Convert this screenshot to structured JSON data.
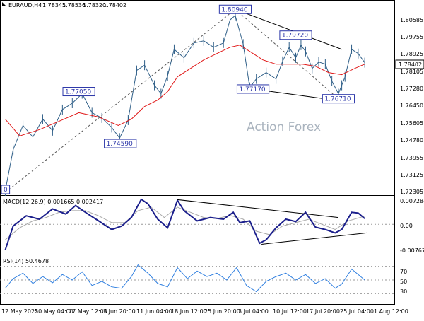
{
  "chart_data": {
    "type": "line",
    "symbol": "EURAUD,H4",
    "ohlc_header": [
      "1.78345",
      "1.78536",
      "1.78320",
      "1.78402"
    ],
    "watermark": "Action Forex",
    "last_price": "1.78402",
    "price_axis": {
      "ylim": [
        1.7215,
        1.8135
      ],
      "ticks": [
        "1.80585",
        "1.79755",
        "1.78925",
        "1.78105",
        "1.77280",
        "1.76450",
        "1.75605",
        "1.74780",
        "1.73955",
        "1.73125",
        "1.72305"
      ]
    },
    "x_axis": {
      "xlim": [
        0,
        600
      ],
      "ticks": [
        "12 May 2025",
        "20 May 04:00",
        "27 May 12:00",
        "3 Jun 20:00",
        "11 Jun 04:00",
        "18 Jun 12:00",
        "25 Jun 20:00",
        "3 Jul 04:00",
        "10 Jul 12:00",
        "17 Jul 20:00",
        "25 Jul 04:00",
        "1 Aug 12:00"
      ]
    },
    "price_series": {
      "name": "EURAUD",
      "x": [
        8,
        20,
        35,
        50,
        65,
        80,
        95,
        110,
        125,
        140,
        155,
        170,
        182,
        195,
        208,
        220,
        235,
        245,
        255,
        265,
        280,
        295,
        310,
        325,
        340,
        350,
        358,
        370,
        380,
        390,
        405,
        420,
        430,
        440,
        450,
        458,
        465,
        475,
        485,
        495,
        505,
        515,
        520,
        525,
        535,
        545,
        555
      ],
      "y": [
        1.7235,
        1.743,
        1.7545,
        1.749,
        1.7575,
        1.752,
        1.762,
        1.765,
        1.7695,
        1.7605,
        1.758,
        1.7535,
        1.7485,
        1.757,
        1.7805,
        1.783,
        1.7735,
        1.7695,
        1.778,
        1.7905,
        1.7865,
        1.7935,
        1.7945,
        1.7915,
        1.7935,
        1.8044,
        1.8065,
        1.793,
        1.7725,
        1.7765,
        1.7795,
        1.7765,
        1.7848,
        1.7915,
        1.7865,
        1.7925,
        1.7895,
        1.7815,
        1.7845,
        1.7835,
        1.7755,
        1.7695,
        1.7735,
        1.7775,
        1.7905,
        1.7885,
        1.7842
      ]
    },
    "ma_series": {
      "x": [
        8,
        30,
        60,
        90,
        120,
        150,
        180,
        200,
        220,
        240,
        255,
        270,
        290,
        310,
        330,
        350,
        365,
        380,
        400,
        420,
        440,
        460,
        480,
        500,
        520,
        540,
        555
      ],
      "y": [
        1.7575,
        1.7495,
        1.7525,
        1.7565,
        1.7605,
        1.7585,
        1.7545,
        1.7575,
        1.7635,
        1.7665,
        1.7705,
        1.7775,
        1.7815,
        1.7855,
        1.7885,
        1.7915,
        1.7925,
        1.7895,
        1.7855,
        1.7835,
        1.7835,
        1.7835,
        1.7825,
        1.7795,
        1.7785,
        1.7815,
        1.7835
      ]
    },
    "annotations": [
      {
        "label": "1.80940",
        "x": 358,
        "y": 1.8094
      },
      {
        "label": "1.79720",
        "x": 450,
        "y": 1.7972
      },
      {
        "label": "1.77050",
        "x": 120,
        "y": 1.7705
      },
      {
        "label": "1.77170",
        "x": 385,
        "y": 1.7717
      },
      {
        "label": "1.76710",
        "x": 515,
        "y": 1.7671
      },
      {
        "label": "1.74590",
        "x": 183,
        "y": 1.7459
      },
      {
        "label": "0",
        "x": 8,
        "y": 1.7228
      }
    ],
    "trend_lines": [
      {
        "style": "solid",
        "x1": 358,
        "y1": 1.8094,
        "x2": 520,
        "y2": 1.7905
      },
      {
        "style": "solid",
        "x1": 385,
        "y1": 1.7717,
        "x2": 532,
        "y2": 1.7655
      },
      {
        "style": "dashed",
        "x1": 8,
        "y1": 1.7228,
        "x2": 358,
        "y2": 1.8094
      },
      {
        "style": "dashed",
        "x1": 358,
        "y1": 1.8094,
        "x2": 515,
        "y2": 1.7671
      }
    ],
    "macd": {
      "title": "MACD(12,26,9) 0.001665 0.002417",
      "ylim": [
        -0.0088,
        0.0081
      ],
      "ticks": [
        "0.007284",
        "0.00",
        "-0.007675"
      ],
      "macd_series": {
        "x": [
          8,
          20,
          40,
          60,
          80,
          100,
          115,
          130,
          150,
          170,
          185,
          200,
          215,
          225,
          240,
          255,
          270,
          280,
          300,
          320,
          340,
          355,
          365,
          380,
          395,
          405,
          420,
          435,
          450,
          465,
          480,
          495,
          510,
          520,
          535,
          545,
          555
        ],
        "y": [
          -0.0075,
          -0.0005,
          0.0025,
          0.0015,
          0.0045,
          0.003,
          0.0055,
          0.0035,
          0.001,
          -0.0015,
          -0.0005,
          0.002,
          0.0073,
          0.006,
          0.0015,
          -0.001,
          0.007,
          0.004,
          0.001,
          0.002,
          0.0015,
          0.0035,
          0.0005,
          0.001,
          -0.0055,
          -0.0045,
          -0.001,
          0.0015,
          0.0008,
          0.0035,
          -0.0008,
          -0.0015,
          -0.0025,
          -0.0015,
          0.0035,
          0.0033,
          0.0017
        ]
      },
      "signal_series": {
        "x": [
          8,
          30,
          50,
          70,
          90,
          110,
          130,
          150,
          170,
          190,
          210,
          230,
          250,
          270,
          290,
          310,
          330,
          350,
          370,
          390,
          410,
          430,
          450,
          470,
          490,
          510,
          530,
          555
        ],
        "y": [
          -0.0045,
          -0.001,
          0.001,
          0.002,
          0.0035,
          0.004,
          0.004,
          0.0025,
          0.0005,
          0.0005,
          0.004,
          0.005,
          0.002,
          0.005,
          0.0035,
          0.002,
          0.0017,
          0.0026,
          0.0015,
          -0.002,
          -0.003,
          -0.0005,
          0.0005,
          0.0015,
          0.0,
          -0.0015,
          0.001,
          0.0024
        ]
      },
      "trend_lines": [
        {
          "x1": 270,
          "y1": 0.0072,
          "x2": 515,
          "y2": 0.002
        },
        {
          "x1": 398,
          "y1": -0.0058,
          "x2": 558,
          "y2": -0.0025
        }
      ]
    },
    "rsi": {
      "title": "RSI(14) 50.4678",
      "ylim": [
        15,
        85
      ],
      "ticks": [
        "70",
        "50",
        "30"
      ],
      "levels": [
        70,
        50,
        30
      ],
      "series": {
        "x": [
          8,
          20,
          35,
          50,
          65,
          80,
          95,
          110,
          125,
          140,
          155,
          170,
          185,
          200,
          210,
          225,
          240,
          255,
          270,
          285,
          300,
          315,
          330,
          345,
          360,
          375,
          390,
          405,
          420,
          435,
          450,
          465,
          480,
          495,
          510,
          520,
          535,
          545,
          555
        ],
        "y": [
          38,
          52,
          60,
          45,
          55,
          46,
          58,
          50,
          62,
          42,
          48,
          40,
          38,
          55,
          72,
          60,
          45,
          40,
          68,
          52,
          63,
          55,
          60,
          50,
          68,
          42,
          33,
          48,
          55,
          60,
          50,
          58,
          45,
          52,
          38,
          44,
          66,
          58,
          50
        ]
      }
    }
  }
}
